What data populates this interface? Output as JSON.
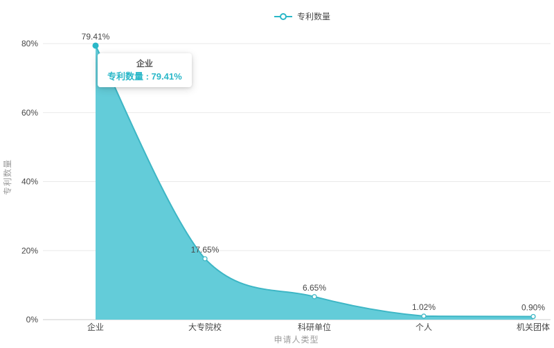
{
  "legend": {
    "label": "专利数量"
  },
  "tooltip": {
    "title": "企业",
    "value_line": "专利数量 : 79.41%"
  },
  "chart_data": {
    "type": "area",
    "title": "",
    "categories": [
      "企业",
      "大专院校",
      "科研单位",
      "个人",
      "机关团体"
    ],
    "series": [
      {
        "name": "专利数量",
        "values": [
          79.41,
          17.65,
          6.65,
          1.02,
          0.9
        ]
      }
    ],
    "value_labels": [
      "79.41%",
      "17.65%",
      "6.65%",
      "1.02%",
      "0.90%"
    ],
    "xlabel": "申请人类型",
    "ylabel": "专利数量",
    "y_ticks": [
      "0%",
      "20%",
      "40%",
      "60%",
      "80%"
    ],
    "y_tick_values": [
      0,
      20,
      40,
      60,
      80
    ],
    "ylim": [
      0,
      80
    ],
    "grid": true,
    "legend_position": "top-center",
    "smooth": true,
    "active_point_index": 0
  },
  "colors": {
    "area_fill": "#63ccd9",
    "line": "#3db6c5",
    "accent": "#29b7c8",
    "label": "#464646",
    "axis_name": "#9b9b9b",
    "grid_line": "#e9e9e9",
    "axis_line": "#cccccc",
    "tooltip_title": "#575757"
  }
}
